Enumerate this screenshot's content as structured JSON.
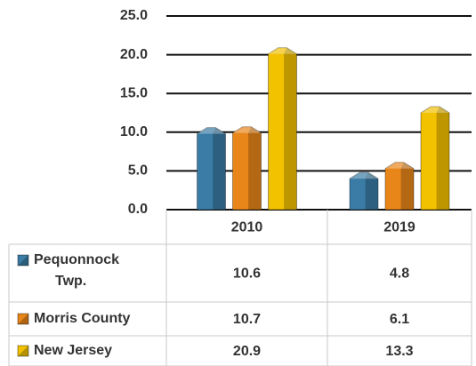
{
  "chart_data": {
    "type": "bar",
    "categories": [
      "2010",
      "2019"
    ],
    "series": [
      {
        "name": "Pequonnock Twp.",
        "color": "#3a7ca5",
        "values": [
          10.6,
          4.8
        ]
      },
      {
        "name": "Morris County",
        "color": "#e8861a",
        "values": [
          10.7,
          6.1
        ]
      },
      {
        "name": "New Jersey",
        "color": "#f2c100",
        "values": [
          20.9,
          13.3
        ]
      }
    ],
    "ylim": [
      0,
      25
    ],
    "yticks": [
      {
        "value": 0,
        "label": "0.0"
      },
      {
        "value": 5,
        "label": "5.0"
      },
      {
        "value": 10,
        "label": "10.0"
      },
      {
        "value": 15,
        "label": "15.0"
      },
      {
        "value": 20,
        "label": "20.0"
      },
      {
        "value": 25,
        "label": "25.0"
      }
    ],
    "grid": true
  }
}
